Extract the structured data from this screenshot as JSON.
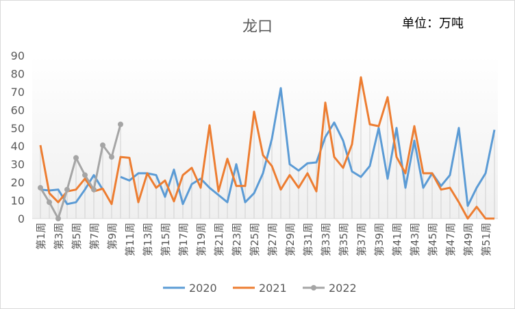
{
  "chart_data": {
    "type": "line",
    "title": "龙口",
    "unit": "单位：万吨",
    "categories": [
      "第1周",
      null,
      "第3周",
      null,
      "第5周",
      null,
      "第7周",
      null,
      "第9周",
      null,
      "第11周",
      null,
      "第13周",
      null,
      "第15周",
      null,
      "第17周",
      null,
      "第19周",
      null,
      "第21周",
      null,
      "第23周",
      null,
      "第25周",
      null,
      "第27周",
      null,
      "第29周",
      null,
      "第31周",
      null,
      "第33周",
      null,
      "第35周",
      null,
      "第37周",
      null,
      "第39周",
      null,
      "第41周",
      null,
      "第43周",
      null,
      "第45周",
      null,
      "第47周",
      null,
      "第49周",
      null,
      "第51周",
      null
    ],
    "series": [
      {
        "name": "2020",
        "color": "#5b9bd5",
        "values": [
          16,
          15.5,
          16,
          8,
          9,
          16,
          24,
          16,
          null,
          23,
          21,
          25,
          25,
          24,
          12,
          27,
          8,
          19,
          22,
          17,
          13,
          9,
          30,
          9,
          14,
          25,
          44,
          72,
          30,
          26.5,
          30.5,
          31,
          45,
          53,
          43,
          26,
          23,
          29,
          50,
          22,
          50,
          17,
          43,
          17,
          25,
          18,
          24,
          50,
          7,
          17,
          25,
          49
        ]
      },
      {
        "name": "2021",
        "color": "#ed7d31",
        "values": [
          40.5,
          14,
          9,
          15,
          16,
          22,
          15,
          16.5,
          8,
          34,
          33.5,
          9,
          25,
          17,
          21,
          9.5,
          24,
          28,
          17,
          51.5,
          15,
          33,
          18,
          18,
          59,
          35,
          29,
          16,
          24,
          17,
          25,
          15,
          64,
          34,
          28,
          41,
          78,
          52,
          51,
          67,
          34,
          25,
          51,
          25,
          25,
          16,
          17,
          9,
          0,
          6.5,
          0,
          0
        ]
      },
      {
        "name": "2022",
        "color": "#a5a5a5",
        "values": [
          17,
          9,
          0,
          16,
          33.5,
          24,
          16,
          40.5,
          34,
          52,
          null,
          null,
          null,
          null,
          null,
          null,
          null,
          null,
          null,
          null,
          null,
          null,
          null,
          null,
          null,
          null,
          null,
          null,
          null,
          null,
          null,
          null,
          null,
          null,
          null,
          null,
          null,
          null,
          null,
          null,
          null,
          null,
          null,
          null,
          null,
          null,
          null,
          null,
          null,
          null,
          null,
          null
        ]
      }
    ],
    "ylim": [
      0,
      90
    ],
    "yticks": [
      0,
      10,
      20,
      30,
      40,
      50,
      60,
      70,
      80,
      90
    ]
  }
}
